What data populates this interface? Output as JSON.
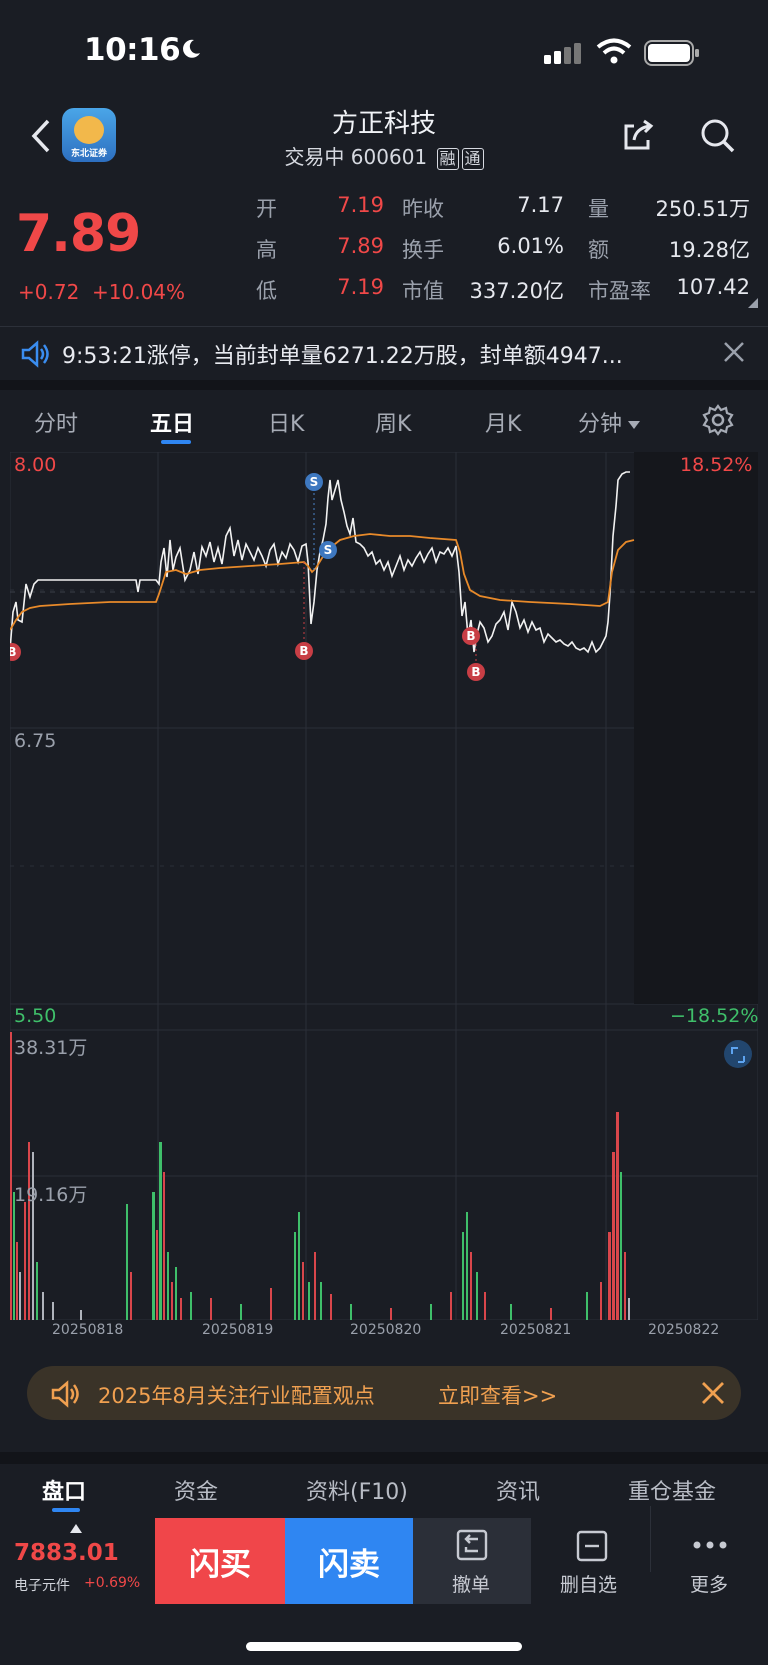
{
  "status_bar": {
    "time": "10:16"
  },
  "nav": {
    "app_logo_text": "东北证券",
    "stock_name": "方正科技",
    "status": "交易中",
    "code": "600601",
    "tags": [
      "融",
      "通"
    ]
  },
  "quote": {
    "price": "7.89",
    "change": "+0.72",
    "change_pct": "+10.04%",
    "rows": [
      [
        {
          "label": "开",
          "value": "7.19"
        },
        {
          "label": "昨收",
          "value": "7.17"
        },
        {
          "label": "量",
          "value": "250.51万"
        }
      ],
      [
        {
          "label": "高",
          "value": "7.89"
        },
        {
          "label": "换手",
          "value": "6.01%"
        },
        {
          "label": "额",
          "value": "19.28亿"
        }
      ],
      [
        {
          "label": "低",
          "value": "7.19"
        },
        {
          "label": "市值",
          "value": "337.20亿"
        },
        {
          "label": "市盈率",
          "value": "107.42"
        }
      ]
    ]
  },
  "notice": {
    "text": "9:53:21涨停，当前封单量6271.22万股，封单额4947..."
  },
  "chart_tabs": [
    "分时",
    "五日",
    "日K",
    "周K",
    "月K",
    "分钟"
  ],
  "chart_tab_active": "五日",
  "chart": {
    "y_top": "8.00",
    "y_mid": "6.75",
    "y_bottom": "5.50",
    "pct_top": "18.52%",
    "pct_bottom": "−18.52%",
    "vol_top": "38.31万",
    "vol_mid": "19.16万",
    "dates": [
      "20250818",
      "20250819",
      "20250820",
      "20250821",
      "20250822"
    ],
    "trade_markers": [
      {
        "type": "B",
        "price": 6.91
      },
      {
        "type": "B",
        "price": 6.91
      },
      {
        "type": "S",
        "price": 7.91
      },
      {
        "type": "S",
        "price": 7.59
      },
      {
        "type": "B",
        "price": 6.93
      },
      {
        "type": "B",
        "price": 6.77
      }
    ]
  },
  "chart_data": {
    "type": "line",
    "x": [
      "20250818",
      "20250819",
      "20250820",
      "20250821",
      "20250822"
    ],
    "series": [],
    "ylim": [
      5.5,
      8.0
    ]
  },
  "promo": {
    "text": "2025年8月关注行业配置观点",
    "link": "立即查看>>"
  },
  "bottom_tabs": [
    "盘口",
    "资金",
    "资料(F10)",
    "资讯",
    "重仓基金"
  ],
  "bottom_tab_active": "盘口",
  "action_bar": {
    "index_value": "7883.01",
    "index_name": "电子元件",
    "index_pct": "+0.69%",
    "buy": "闪买",
    "sell": "闪卖",
    "cancel": "撤单",
    "remove_watch": "删自选",
    "more": "更多"
  },
  "colors": {
    "up": "#f04848",
    "down": "#3fbf6a",
    "accent": "#2f86f2",
    "avg_line": "#e88a2a"
  }
}
